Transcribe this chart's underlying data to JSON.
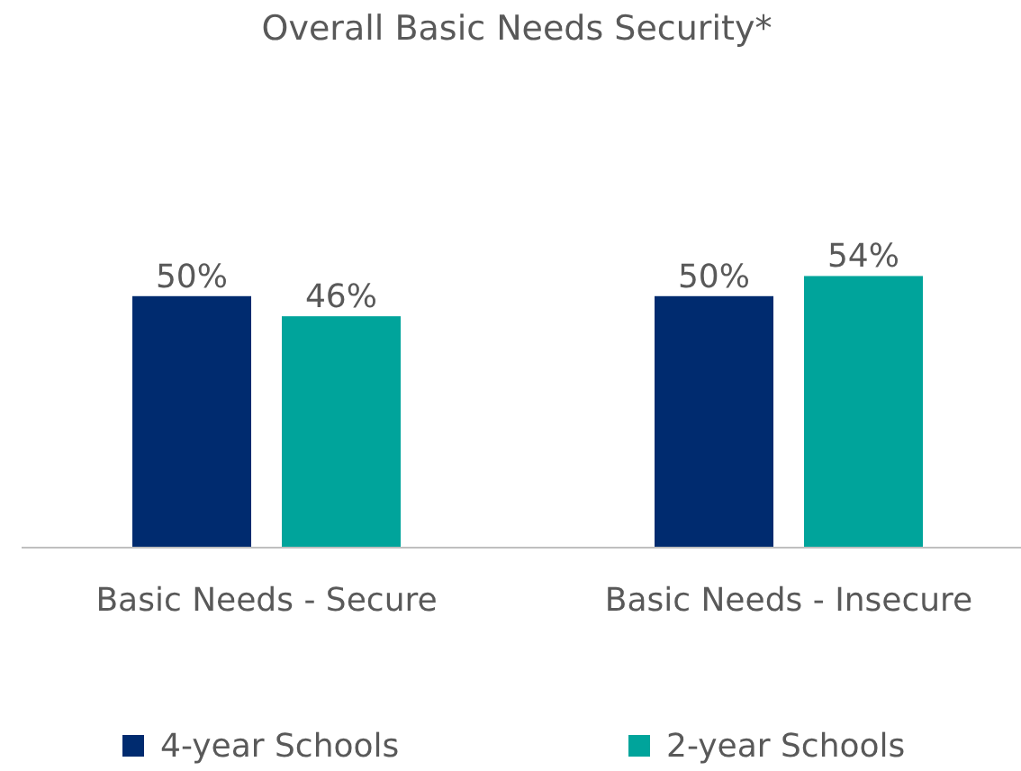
{
  "chart_data": {
    "type": "bar",
    "title": "Overall Basic Needs Security*",
    "categories": [
      "Basic Needs - Secure",
      "Basic Needs - Insecure"
    ],
    "series": [
      {
        "name": "4-year Schools",
        "color": "#002b6f",
        "values": [
          50,
          50
        ],
        "value_labels": [
          "50%",
          "50%"
        ]
      },
      {
        "name": "2-year Schools",
        "color": "#00a49b",
        "values": [
          46,
          54
        ],
        "value_labels": [
          "46%",
          "54%"
        ]
      }
    ],
    "legend": "bottom"
  }
}
